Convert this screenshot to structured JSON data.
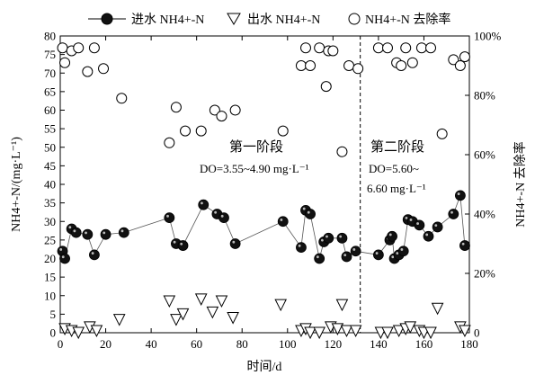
{
  "chart_data": {
    "type": "line",
    "xlabel": "时间/d",
    "ylabel_left": "NH4+-N/(mg·L⁻¹)",
    "ylabel_right": "NH4+-N 去除率",
    "xlim": [
      0,
      180
    ],
    "xticks": [
      0,
      20,
      40,
      60,
      80,
      100,
      120,
      140,
      160,
      180
    ],
    "ylim_left": [
      0,
      80
    ],
    "yticks_left": [
      0,
      5,
      10,
      15,
      20,
      25,
      30,
      35,
      40,
      45,
      50,
      55,
      60,
      65,
      70,
      75,
      80
    ],
    "ylim_right": [
      0,
      100
    ],
    "yticks_right": [
      0,
      20,
      40,
      60,
      80,
      100
    ],
    "ytick_labels_right": [
      "0",
      "20%",
      "40%",
      "60%",
      "80%",
      "100%"
    ],
    "grid": false,
    "legend_position": "top",
    "legend": [
      "进水 NH4+-N",
      "出水 NH4+-N",
      "NH4+-N 去除率"
    ],
    "stage_divider_x": 132,
    "annotations": {
      "stage1_title": "第一阶段",
      "stage1_do": "DO=3.55~4.90 mg·L⁻¹",
      "stage2_title": "第二阶段",
      "stage2_do_line1": "DO=5.60~",
      "stage2_do_line2": "6.60 mg·L⁻¹"
    },
    "series": [
      {
        "name": "进水 NH4+-N",
        "axis": "left",
        "marker": "filled-circle",
        "x": [
          1,
          2,
          5,
          7,
          12,
          15,
          20,
          28,
          48,
          51,
          54,
          63,
          69,
          72,
          77,
          98,
          106,
          108,
          110,
          114,
          116,
          118,
          124,
          126,
          130,
          140,
          145,
          146,
          147,
          149,
          151,
          153,
          155,
          158,
          162,
          166,
          173,
          176,
          178
        ],
        "y": [
          22,
          20,
          28,
          27,
          26.5,
          21,
          26.5,
          27,
          31,
          24,
          23.5,
          34.5,
          32,
          31,
          24,
          30,
          23,
          33,
          32,
          20,
          24.5,
          25.5,
          25.5,
          20.5,
          22,
          21,
          25,
          26,
          20,
          21,
          22,
          30.5,
          30,
          29,
          26,
          28.5,
          32,
          37,
          23.5
        ]
      },
      {
        "name": "出水 NH4+-N",
        "axis": "left",
        "marker": "open-triangle-down",
        "x": [
          2,
          5,
          8,
          13,
          16,
          26,
          48,
          51,
          54,
          62,
          67,
          71,
          76,
          97,
          106,
          108,
          110,
          114,
          119,
          122,
          124,
          126,
          130,
          141,
          144,
          149,
          152,
          154,
          158,
          160,
          163,
          166,
          176,
          178
        ],
        "y": [
          1,
          0.5,
          0,
          1.5,
          0.5,
          3.5,
          8.5,
          3.5,
          5,
          9,
          5.5,
          8.5,
          4,
          7.5,
          0.5,
          1,
          0,
          0,
          1.5,
          1,
          7.5,
          0.5,
          0.5,
          0,
          0,
          0.5,
          1,
          1.5,
          0.5,
          0,
          0,
          6.5,
          1.5,
          0.5
        ]
      },
      {
        "name": "NH4+-N 去除率",
        "axis": "right",
        "marker": "open-circle",
        "x": [
          1,
          2,
          5,
          8,
          12,
          15,
          19,
          27,
          48,
          51,
          55,
          62,
          68,
          71,
          77,
          98,
          106,
          108,
          110,
          114,
          117,
          118,
          120,
          124,
          127,
          131,
          140,
          144,
          148,
          150,
          152,
          155,
          159,
          163,
          168,
          173,
          176,
          178
        ],
        "y": [
          96,
          91,
          95,
          96,
          88,
          96,
          89,
          79,
          64,
          76,
          68,
          68,
          75,
          73,
          75,
          68,
          90,
          96,
          90,
          96,
          83,
          95,
          95,
          61,
          90,
          89,
          96,
          96,
          91,
          90,
          96,
          91,
          96,
          96,
          67,
          92,
          90,
          93
        ]
      }
    ]
  }
}
